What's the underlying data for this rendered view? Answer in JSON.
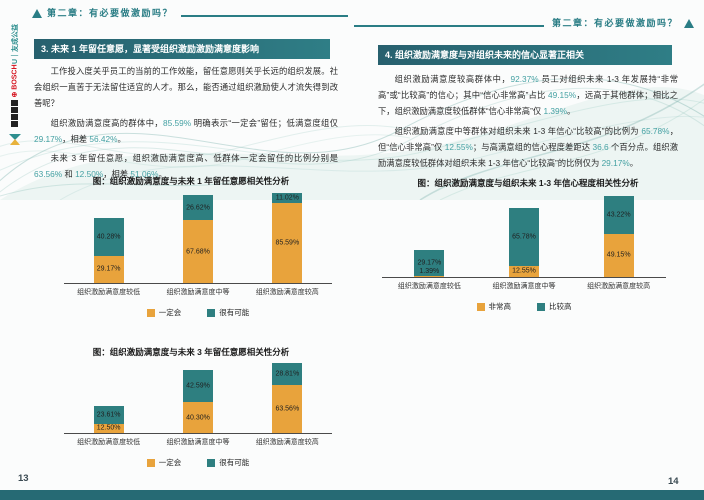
{
  "chapter_title": "第二章：有必要做激励吗？",
  "sidebar": {
    "logos": [
      {
        "label": "U｜友成公益"
      },
      {
        "label": "⊕ BOSCH"
      }
    ]
  },
  "page_left": {
    "page_number": "13",
    "section_title": "3. 未来 1 年留任意愿，显著受组织激励激励满意度影响",
    "paragraphs": [
      "工作投入度关乎员工的当前的工作效能，留任意愿则关乎长远的组织发展。社会组织一直苦于无法留住适宜的人才。那么，能否通过组织激励使人才流失得到改善呢？",
      "组织激励满意度高的群体中，85.59% 明确表示“一定会”留任；低满意度组仅 29.17%，相差 56.42%。",
      "未来 3 年留任意愿，组织激励满意度高、低群体一定会留任的比例分别是 63.56% 和 12.50%，相差 51.06%。"
    ],
    "chart1_title": "图：组织激励满意度与未来 1 年留任意愿相关性分析",
    "chart2_title": "图：组织激励满意度与未来 3 年留任意愿相关性分析"
  },
  "page_right": {
    "page_number": "14",
    "section_title": "4. 组织激励满意度与对组织未来的信心显著正相关",
    "paragraphs": [
      "组织激励满意度较高群体中，92.37% 员工对组织未来 1-3 年发展持“非常高”或“比较高”的信心；其中“信心非常高”占比 49.15%，远高于其他群体；相比之下，组织激励满意度较低群体“信心非常高”仅 1.39%。",
      "组织激励满意度中等群体对组织未来 1-3 年信心“比较高”的比例为 65.78%，但“信心非常高”仅 12.55%；与高满意组的信心程度差距达 36.6 个百分点。组织激励满意度较低群体对组织未来 1-3 年信心“比较高”的比例仅为 29.17%。"
    ],
    "chart_title": "图：组织激励满意度与组织未来 1-3 年信心程度相关性分析"
  },
  "chart_data": [
    {
      "type": "bar",
      "stacked": true,
      "title": "图：组织激励满意度与未来 1 年留任意愿相关性分析",
      "categories": [
        "组织激励满意度较低",
        "组织激励满意度中等",
        "组织激励满意度较高"
      ],
      "series": [
        {
          "name": "一定会",
          "color": "#E8A33C",
          "values": [
            29.17,
            67.68,
            85.59
          ]
        },
        {
          "name": "很有可能",
          "color": "#2E7F80",
          "values": [
            40.28,
            26.62,
            11.02
          ]
        }
      ],
      "ylim": [
        0,
        100
      ],
      "legend_position": "bottom"
    },
    {
      "type": "bar",
      "stacked": true,
      "title": "图：组织激励满意度与未来 3 年留任意愿相关性分析",
      "categories": [
        "组织激励满意度较低",
        "组织激励满意度中等",
        "组织激励满意度较高"
      ],
      "series": [
        {
          "name": "一定会",
          "color": "#E8A33C",
          "values": [
            12.5,
            40.3,
            63.56
          ]
        },
        {
          "name": "很有可能",
          "color": "#2E7F80",
          "values": [
            23.61,
            42.59,
            28.81
          ]
        }
      ],
      "ylim": [
        0,
        100
      ],
      "legend_position": "bottom"
    },
    {
      "type": "bar",
      "stacked": true,
      "title": "图：组织激励满意度与组织未来 1-3 年信心程度相关性分析",
      "categories": [
        "组织激励满意度较低",
        "组织激励满意度中等",
        "组织激励满意度较高"
      ],
      "series": [
        {
          "name": "非常高",
          "color": "#E8A33C",
          "values": [
            1.39,
            12.55,
            49.15
          ]
        },
        {
          "name": "比较高",
          "color": "#2E7F80",
          "values": [
            29.17,
            65.78,
            43.22
          ]
        }
      ],
      "ylim": [
        0,
        100
      ],
      "legend_position": "bottom"
    }
  ],
  "colors": {
    "accent_teal": "#2A7D85",
    "section_bar_gradient": [
      "#27606E",
      "#2F7E86"
    ],
    "bar_orange": "#E8A33C",
    "bar_teal": "#2E7F80",
    "number_highlight": "#45A1A3",
    "footer_bar": "#266A74"
  }
}
